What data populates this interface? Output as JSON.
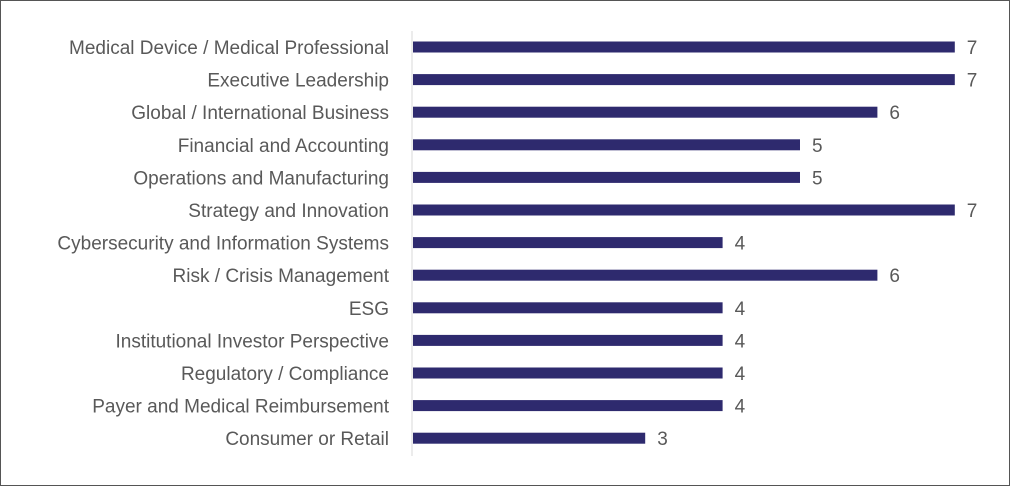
{
  "chart_data": {
    "type": "bar",
    "orientation": "horizontal",
    "title": "",
    "xlabel": "",
    "ylabel": "",
    "xlim": [
      0,
      7
    ],
    "grid": false,
    "legend": "none",
    "bar_color": "#2E2A6E",
    "axis_color": "#D9D9D9",
    "label_color": "#595959",
    "categories": [
      "Medical Device / Medical Professional",
      "Executive Leadership",
      "Global / International Business",
      "Financial and Accounting",
      "Operations and Manufacturing",
      "Strategy and Innovation",
      "Cybersecurity and Information Systems",
      "Risk / Crisis Management",
      "ESG",
      "Institutional Investor Perspective",
      "Regulatory / Compliance",
      "Payer and Medical Reimbursement",
      "Consumer or Retail"
    ],
    "values": [
      7,
      7,
      6,
      5,
      5,
      7,
      4,
      6,
      4,
      4,
      4,
      4,
      3
    ]
  }
}
